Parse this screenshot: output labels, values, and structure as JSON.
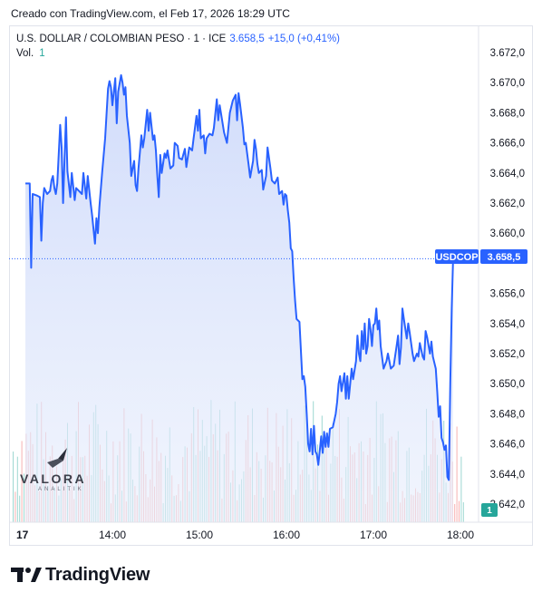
{
  "header": {
    "created": "Creado con TradingView.com, el Feb 17, 2026 18:29 UTC"
  },
  "legend": {
    "symbol": "U.S. DOLLAR / COLOMBIAN PESO · 1 · ICE",
    "last": "3.658,5",
    "change": "+15,0 (+0,41%)",
    "vol_label": "Vol.",
    "vol_value": "1"
  },
  "price_label": {
    "ticker": "USDCOP",
    "value": "3.658,5"
  },
  "volume_label": "1",
  "watermark": {
    "name": "VALORA",
    "sub": "ANALITIK"
  },
  "brand": "TradingView",
  "colors": {
    "line": "#2962ff",
    "fill": "#dbe4fb",
    "vol_up": "#26a69a",
    "vol_down": "#ef5350",
    "label_bg": "#2962ff"
  },
  "chart_data": {
    "type": "area",
    "symbol": "USDCOP",
    "y_range": [
      3641.0,
      3673.0
    ],
    "y_ticks": [
      {
        "value": 3672,
        "label": "3.672,0"
      },
      {
        "value": 3670,
        "label": "3.670,0"
      },
      {
        "value": 3668,
        "label": "3.668,0"
      },
      {
        "value": 3666,
        "label": "3.666,0"
      },
      {
        "value": 3664,
        "label": "3.664,0"
      },
      {
        "value": 3662,
        "label": "3.662,0"
      },
      {
        "value": 3660,
        "label": "3.660,0"
      },
      {
        "value": 3656,
        "label": "3.656,0"
      },
      {
        "value": 3654,
        "label": "3.654,0"
      },
      {
        "value": 3652,
        "label": "3.652,0"
      },
      {
        "value": 3650,
        "label": "3.650,0"
      },
      {
        "value": 3648,
        "label": "3.648,0"
      },
      {
        "value": 3646,
        "label": "3.646,0"
      },
      {
        "value": 3644,
        "label": "3.644,0"
      },
      {
        "value": 3642,
        "label": "3.642,0"
      }
    ],
    "x_range": [
      "13:00",
      "18:10"
    ],
    "x_ticks": [
      {
        "time": "13:00",
        "label": "17",
        "bold": true
      },
      {
        "time": "14:00",
        "label": "14:00"
      },
      {
        "time": "15:00",
        "label": "15:00"
      },
      {
        "time": "16:00",
        "label": "16:00"
      },
      {
        "time": "17:00",
        "label": "17:00"
      },
      {
        "time": "18:00",
        "label": "18:00"
      }
    ],
    "last_value": 3658.5,
    "reference_line": 3658.3,
    "series": [
      {
        "points": [
          [
            "13:00",
            3663.3
          ],
          [
            "13:03",
            3663.3
          ],
          [
            "13:04",
            3657.7
          ],
          [
            "13:05",
            3662.6
          ],
          [
            "13:08",
            3662.5
          ],
          [
            "13:10",
            3662.4
          ],
          [
            "13:11",
            3659.5
          ],
          [
            "13:12",
            3662.0
          ],
          [
            "13:13",
            3663.0
          ],
          [
            "13:15",
            3662.6
          ],
          [
            "13:17",
            3662.8
          ],
          [
            "13:18",
            3663.5
          ],
          [
            "13:19",
            3663.8
          ],
          [
            "13:20",
            3663.0
          ],
          [
            "13:21",
            3662.6
          ],
          [
            "13:22",
            3663.3
          ],
          [
            "13:24",
            3667.2
          ],
          [
            "13:25",
            3665.7
          ],
          [
            "13:26",
            3662.0
          ],
          [
            "13:27",
            3664.9
          ],
          [
            "13:28",
            3667.7
          ],
          [
            "13:29",
            3664.1
          ],
          [
            "13:31",
            3662.4
          ],
          [
            "13:32",
            3664.0
          ],
          [
            "13:34",
            3662.2
          ],
          [
            "13:35",
            3663.0
          ],
          [
            "13:37",
            3662.8
          ],
          [
            "13:39",
            3662.6
          ],
          [
            "13:40",
            3664.0
          ],
          [
            "13:42",
            3662.3
          ],
          [
            "13:43",
            3663.8
          ],
          [
            "13:45",
            3662.0
          ],
          [
            "13:46",
            3661.2
          ],
          [
            "13:48",
            3659.3
          ],
          [
            "13:49",
            3661.0
          ],
          [
            "13:50",
            3660.0
          ],
          [
            "13:51",
            3661.7
          ],
          [
            "13:53",
            3664.1
          ],
          [
            "13:55",
            3666.3
          ],
          [
            "13:57",
            3669.6
          ],
          [
            "13:58",
            3670.1
          ],
          [
            "13:59",
            3669.7
          ],
          [
            "14:00",
            3668.5
          ],
          [
            "14:02",
            3670.3
          ],
          [
            "14:03",
            3667.3
          ],
          [
            "14:04",
            3669.4
          ],
          [
            "14:06",
            3670.5
          ],
          [
            "14:07",
            3670.0
          ],
          [
            "14:08",
            3669.2
          ],
          [
            "14:09",
            3669.7
          ],
          [
            "14:10",
            3667.8
          ],
          [
            "14:12",
            3666.0
          ],
          [
            "14:13",
            3663.8
          ],
          [
            "14:15",
            3664.8
          ],
          [
            "14:16",
            3663.2
          ],
          [
            "14:17",
            3662.8
          ],
          [
            "14:18",
            3664.3
          ],
          [
            "14:20",
            3666.5
          ],
          [
            "14:21",
            3665.7
          ],
          [
            "14:22",
            3666.3
          ],
          [
            "14:24",
            3668.2
          ],
          [
            "14:25",
            3666.8
          ],
          [
            "14:26",
            3668.0
          ],
          [
            "14:28",
            3666.2
          ],
          [
            "14:29",
            3666.5
          ],
          [
            "14:30",
            3665.5
          ],
          [
            "14:31",
            3663.8
          ],
          [
            "14:32",
            3662.4
          ],
          [
            "14:33",
            3665.2
          ],
          [
            "14:34",
            3664.0
          ],
          [
            "14:36",
            3665.3
          ],
          [
            "14:37",
            3665.0
          ],
          [
            "14:38",
            3665.5
          ],
          [
            "14:40",
            3664.3
          ],
          [
            "14:42",
            3664.5
          ],
          [
            "14:43",
            3666.0
          ],
          [
            "14:45",
            3665.8
          ],
          [
            "14:46",
            3665.0
          ],
          [
            "14:48",
            3664.9
          ],
          [
            "14:50",
            3665.6
          ],
          [
            "14:51",
            3664.4
          ],
          [
            "14:53",
            3665.7
          ],
          [
            "14:55",
            3665.5
          ],
          [
            "14:56",
            3666.3
          ],
          [
            "14:58",
            3667.8
          ],
          [
            "14:59",
            3666.8
          ],
          [
            "15:00",
            3668.2
          ],
          [
            "15:01",
            3666.3
          ],
          [
            "15:03",
            3666.5
          ],
          [
            "15:04",
            3665.3
          ],
          [
            "15:05",
            3666.3
          ],
          [
            "15:07",
            3666.6
          ],
          [
            "15:09",
            3666.5
          ],
          [
            "15:10",
            3667.0
          ],
          [
            "15:12",
            3668.9
          ],
          [
            "15:13",
            3667.5
          ],
          [
            "15:14",
            3668.5
          ],
          [
            "15:16",
            3667.3
          ],
          [
            "15:17",
            3666.7
          ],
          [
            "15:19",
            3666.0
          ],
          [
            "15:21",
            3668.0
          ],
          [
            "15:23",
            3668.8
          ],
          [
            "15:25",
            3669.2
          ],
          [
            "15:26",
            3667.5
          ],
          [
            "15:27",
            3669.3
          ],
          [
            "15:28",
            3668.6
          ],
          [
            "15:30",
            3667.0
          ],
          [
            "15:31",
            3665.9
          ],
          [
            "15:32",
            3666.0
          ],
          [
            "15:34",
            3664.5
          ],
          [
            "15:35",
            3663.7
          ],
          [
            "15:37",
            3664.8
          ],
          [
            "15:38",
            3666.2
          ],
          [
            "15:39",
            3665.6
          ],
          [
            "15:40",
            3664.6
          ],
          [
            "15:41",
            3664.0
          ],
          [
            "15:43",
            3664.2
          ],
          [
            "15:44",
            3662.9
          ],
          [
            "15:46",
            3663.8
          ],
          [
            "15:47",
            3665.7
          ],
          [
            "15:49",
            3664.3
          ],
          [
            "15:50",
            3663.5
          ],
          [
            "15:52",
            3663.3
          ],
          [
            "15:54",
            3663.7
          ],
          [
            "15:55",
            3662.6
          ],
          [
            "15:57",
            3662.8
          ],
          [
            "15:58",
            3661.9
          ],
          [
            "15:59",
            3662.6
          ],
          [
            "16:00",
            3662.5
          ],
          [
            "16:01",
            3661.5
          ],
          [
            "16:02",
            3660.7
          ],
          [
            "16:03",
            3659.0
          ],
          [
            "16:04",
            3658.8
          ],
          [
            "16:05",
            3657.0
          ],
          [
            "16:06",
            3655.5
          ],
          [
            "16:07",
            3654.3
          ],
          [
            "16:09",
            3654.1
          ],
          [
            "16:10",
            3652.2
          ],
          [
            "16:11",
            3650.3
          ],
          [
            "16:12",
            3650.5
          ],
          [
            "16:13",
            3649.8
          ],
          [
            "16:14",
            3648.0
          ],
          [
            "16:15",
            3646.0
          ],
          [
            "16:16",
            3645.5
          ],
          [
            "16:17",
            3647.0
          ],
          [
            "16:18",
            3645.3
          ],
          [
            "16:19",
            3647.2
          ],
          [
            "16:20",
            3645.5
          ],
          [
            "16:21",
            3645.3
          ],
          [
            "16:22",
            3644.6
          ],
          [
            "16:24",
            3646.5
          ],
          [
            "16:25",
            3645.4
          ],
          [
            "16:26",
            3646.8
          ],
          [
            "16:27",
            3645.8
          ],
          [
            "16:28",
            3646.7
          ],
          [
            "16:29",
            3645.8
          ],
          [
            "16:30",
            3647.0
          ],
          [
            "16:32",
            3647.1
          ],
          [
            "16:34",
            3648.0
          ],
          [
            "16:35",
            3648.8
          ],
          [
            "16:36",
            3650.0
          ],
          [
            "16:37",
            3650.5
          ],
          [
            "16:38",
            3649.5
          ],
          [
            "16:40",
            3650.7
          ],
          [
            "16:41",
            3649.0
          ],
          [
            "16:42",
            3650.5
          ],
          [
            "16:43",
            3649.0
          ],
          [
            "16:45",
            3651.0
          ],
          [
            "16:46",
            3650.3
          ],
          [
            "16:48",
            3651.5
          ],
          [
            "16:49",
            3653.2
          ],
          [
            "16:50",
            3652.0
          ],
          [
            "16:51",
            3651.5
          ],
          [
            "16:52",
            3653.5
          ],
          [
            "16:53",
            3652.3
          ],
          [
            "16:54",
            3654.0
          ],
          [
            "16:55",
            3652.0
          ],
          [
            "16:56",
            3652.5
          ],
          [
            "16:57",
            3654.3
          ],
          [
            "16:58",
            3653.6
          ],
          [
            "16:59",
            3652.5
          ],
          [
            "17:00",
            3653.9
          ],
          [
            "17:01",
            3654.0
          ],
          [
            "17:02",
            3655.0
          ],
          [
            "17:03",
            3653.6
          ],
          [
            "17:04",
            3654.2
          ],
          [
            "17:05",
            3652.5
          ],
          [
            "17:07",
            3651.0
          ],
          [
            "17:09",
            3651.5
          ],
          [
            "17:10",
            3652.0
          ],
          [
            "17:12",
            3651.0
          ],
          [
            "17:14",
            3651.2
          ],
          [
            "17:16",
            3652.5
          ],
          [
            "17:17",
            3653.2
          ],
          [
            "17:18",
            3651.3
          ],
          [
            "17:19",
            3652.4
          ],
          [
            "17:20",
            3655.0
          ],
          [
            "17:21",
            3654.3
          ],
          [
            "17:23",
            3653.0
          ],
          [
            "17:24",
            3654.0
          ],
          [
            "17:25",
            3653.4
          ],
          [
            "17:27",
            3652.0
          ],
          [
            "17:28",
            3651.5
          ],
          [
            "17:30",
            3652.0
          ],
          [
            "17:31",
            3651.8
          ],
          [
            "17:32",
            3652.7
          ],
          [
            "17:34",
            3651.8
          ],
          [
            "17:35",
            3651.6
          ],
          [
            "17:36",
            3653.5
          ],
          [
            "17:37",
            3653.1
          ],
          [
            "17:39",
            3652.0
          ],
          [
            "17:40",
            3652.8
          ],
          [
            "17:41",
            3651.8
          ],
          [
            "17:43",
            3651.0
          ],
          [
            "17:44",
            3649.5
          ],
          [
            "17:45",
            3647.8
          ],
          [
            "17:46",
            3648.5
          ],
          [
            "17:47",
            3646.4
          ],
          [
            "17:48",
            3646.1
          ],
          [
            "17:49",
            3645.6
          ],
          [
            "17:50",
            3645.9
          ],
          [
            "17:51",
            3643.8
          ],
          [
            "17:52",
            3643.6
          ],
          [
            "17:53",
            3650.0
          ],
          [
            "17:54",
            3655.0
          ],
          [
            "17:55",
            3658.5
          ]
        ]
      }
    ]
  }
}
